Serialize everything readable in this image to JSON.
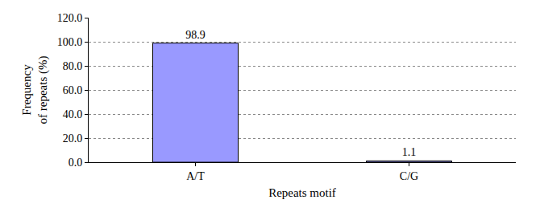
{
  "chart_data": {
    "type": "bar",
    "x_label": "Repeats motif",
    "y_label": "Frequency of repeats (%)",
    "categories": [
      "A/T",
      "C/G"
    ],
    "values": [
      98.9,
      1.1
    ],
    "color": "#9999ff",
    "ylim": [
      0,
      120
    ],
    "yticks": [
      {
        "value": 0,
        "label": "0.0"
      },
      {
        "value": 20,
        "label": "20.0"
      },
      {
        "value": 40,
        "label": "40.0"
      },
      {
        "value": 60,
        "label": "60.0"
      },
      {
        "value": 80,
        "label": "80.0"
      },
      {
        "value": 100,
        "label": "100.0"
      },
      {
        "value": 120,
        "label": "120.0"
      }
    ],
    "grid": true,
    "data_labels": true
  }
}
